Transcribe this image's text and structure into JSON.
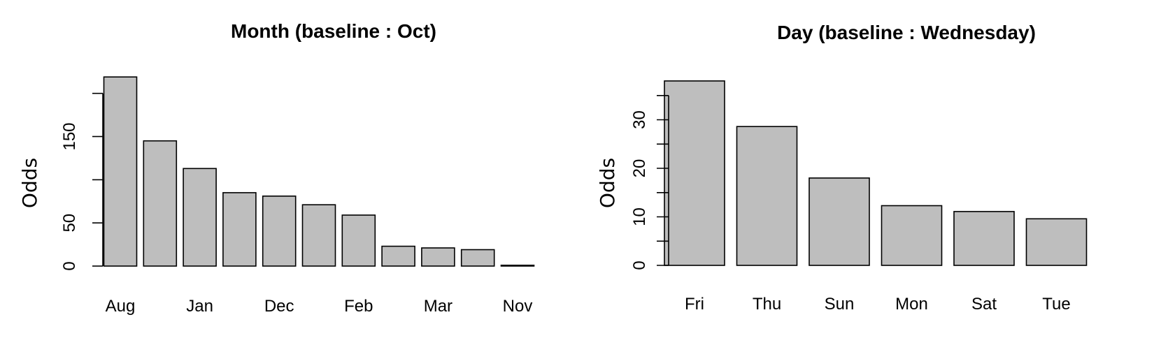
{
  "chart_data": [
    {
      "type": "bar",
      "title": "Month (baseline : Oct)",
      "xlabel": "",
      "ylabel": "Odds",
      "categories": [
        "Aug",
        "",
        "Jan",
        "",
        "Dec",
        "",
        "Feb",
        "",
        "Mar",
        "",
        "Nov"
      ],
      "values": [
        219,
        145,
        113,
        85,
        81,
        71,
        59,
        23,
        21,
        19,
        1
      ],
      "yticks": [
        0,
        50,
        100,
        150,
        200
      ],
      "ytick_labels": [
        "0",
        "50",
        "",
        "150",
        ""
      ],
      "ylim": [
        0,
        219
      ],
      "grid": false
    },
    {
      "type": "bar",
      "title": "Day (baseline : Wednesday)",
      "xlabel": "",
      "ylabel": "Odds",
      "categories": [
        "Fri",
        "Thu",
        "Sun",
        "Mon",
        "Sat",
        "Tue"
      ],
      "values": [
        38,
        28.6,
        18,
        12.3,
        11.1,
        9.6
      ],
      "yticks": [
        0,
        5,
        10,
        15,
        20,
        25,
        30,
        35
      ],
      "ytick_labels": [
        "0",
        "",
        "10",
        "",
        "20",
        "",
        "30",
        ""
      ],
      "ylim": [
        0,
        38
      ],
      "grid": false
    }
  ]
}
